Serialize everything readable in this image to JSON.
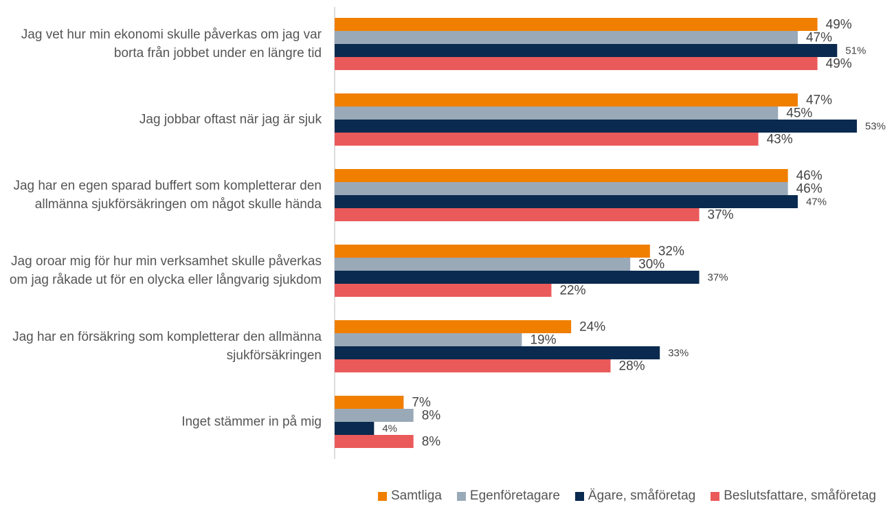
{
  "chart_data": {
    "type": "hbar",
    "categories": [
      "Jag vet hur min ekonomi skulle påverkas om jag var borta från jobbet under en längre tid",
      "Jag jobbar oftast när jag är sjuk",
      "Jag har en egen sparad buffert som kompletterar den allmänna sjukförsäkringen om något skulle hända",
      "Jag oroar mig för hur min verksamhet skulle påverkas om jag råkade ut för en olycka eller långvarig sjukdom",
      "Jag har en försäkring som kompletterar den allmänna sjukförsäkringen",
      "Inget stämmer in på mig"
    ],
    "series": [
      {
        "name": "Samtliga",
        "color": "#f07f00",
        "values": [
          49,
          47,
          46,
          32,
          24,
          7
        ],
        "value_labels": [
          "49%",
          "47%",
          "46%",
          "32%",
          "24%",
          "7%"
        ]
      },
      {
        "name": "Egenföretagare",
        "color": "#9aa9b8",
        "values": [
          47,
          45,
          46,
          30,
          19,
          8
        ],
        "value_labels": [
          "47%",
          "45%",
          "46%",
          "30%",
          "19%",
          "8%"
        ]
      },
      {
        "name": "Ägare, småföretag",
        "color": "#0a2a4f",
        "values": [
          51,
          53,
          47,
          37,
          33,
          4
        ],
        "value_labels": [
          "51%",
          "53%",
          "47%",
          "37%",
          "33%",
          "4%"
        ]
      },
      {
        "name": "Beslutsfattare, småföretag",
        "color": "#ea5a5a",
        "values": [
          49,
          43,
          37,
          22,
          28,
          8
        ],
        "value_labels": [
          "49%",
          "43%",
          "37%",
          "22%",
          "28%",
          "8%"
        ]
      }
    ],
    "xlim": [
      0,
      56
    ],
    "legend": "bottom-right"
  }
}
